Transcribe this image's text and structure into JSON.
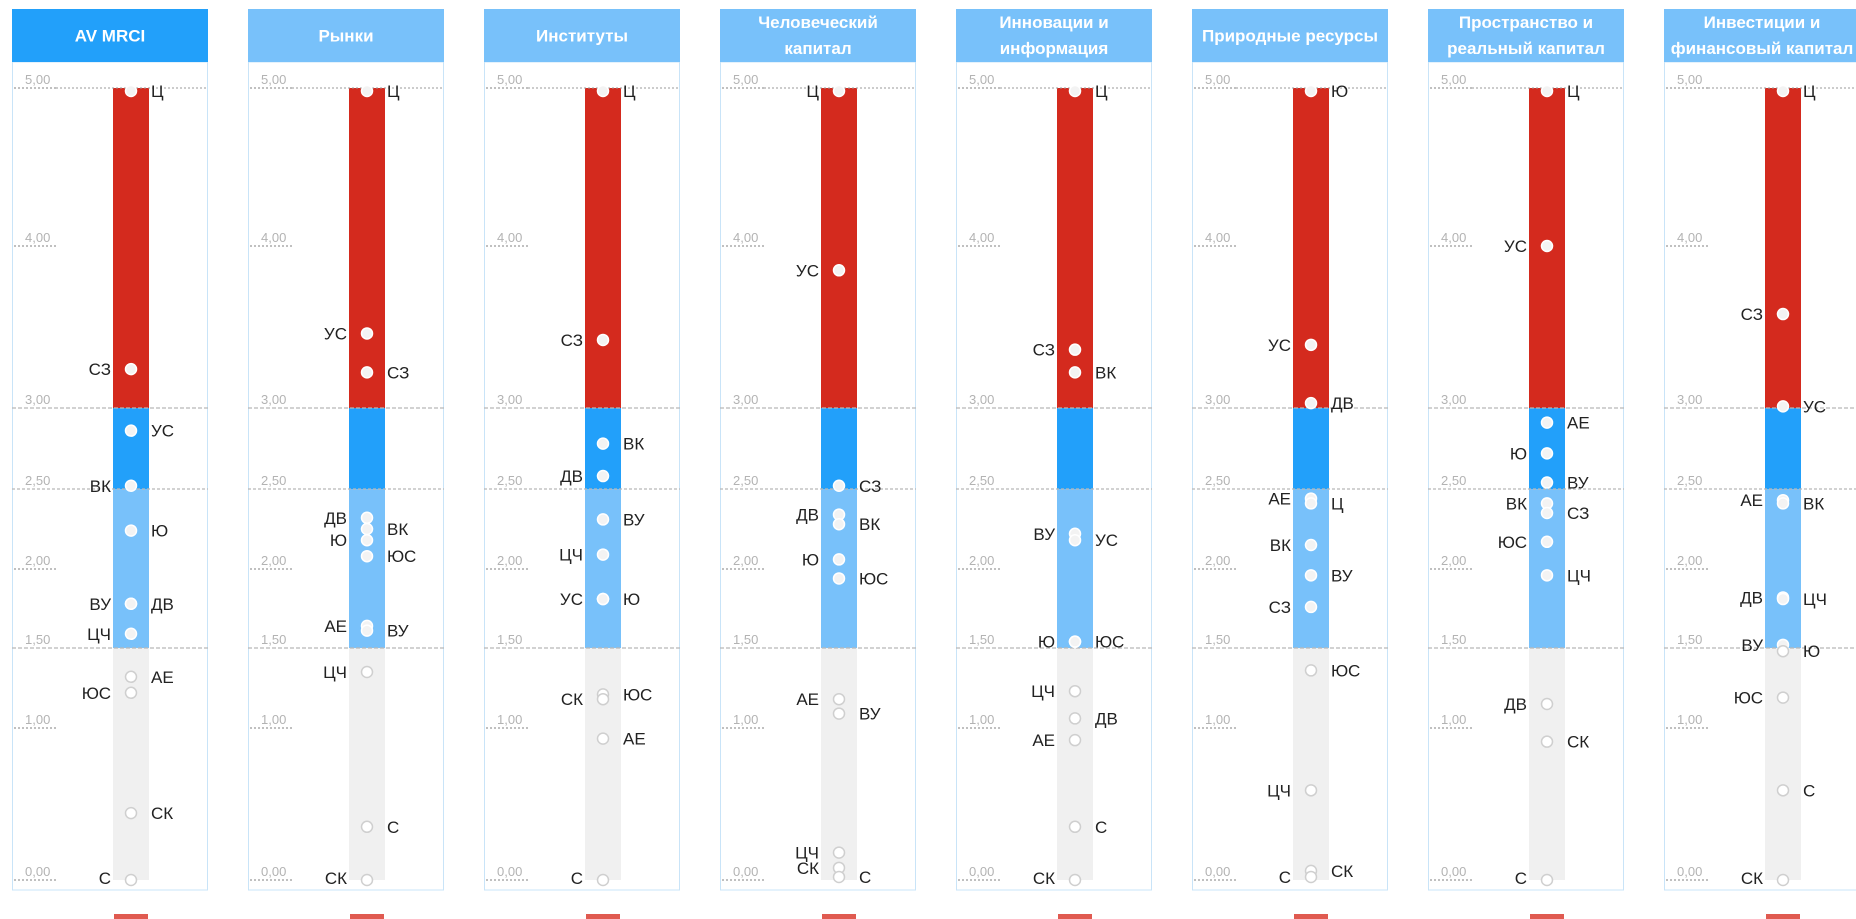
{
  "colors": {
    "header_active": "#22a0fa",
    "header_inactive": "#78c1fa",
    "band_top": "#d42a1e",
    "band_mid": "#22a0fa",
    "band_low": "#78c1fa",
    "band_bottom": "#f0f0f0",
    "panel_border": "#c9e4f8",
    "point_fill": "#f3f3f3",
    "point_stroke_light": "#cfcfcf"
  },
  "chart_data": {
    "type": "scatter",
    "axis": {
      "ticks": [
        {
          "value": 5.0,
          "label": "5,00"
        },
        {
          "value": 4.0,
          "label": "4,00"
        },
        {
          "value": 3.0,
          "label": "3,00"
        },
        {
          "value": 2.5,
          "label": "2,50"
        },
        {
          "value": 2.0,
          "label": "2,00"
        },
        {
          "value": 1.5,
          "label": "1,50"
        },
        {
          "value": 1.0,
          "label": "1,00"
        },
        {
          "value": 0.0,
          "label": "0,00"
        }
      ],
      "bands": [
        {
          "from": 3.0,
          "to": 5.0,
          "color": "#d42a1e"
        },
        {
          "from": 2.5,
          "to": 3.0,
          "color": "#22a0fa"
        },
        {
          "from": 1.5,
          "to": 2.5,
          "color": "#78c1fa"
        },
        {
          "from": 0.0,
          "to": 1.5,
          "color": "#f0f0f0"
        }
      ]
    },
    "panels": [
      {
        "title": [
          "AV MRCI"
        ],
        "active": true,
        "points": [
          {
            "label": "Ц",
            "value": 5.0,
            "side": "right"
          },
          {
            "label": "СЗ",
            "value": 3.24,
            "side": "left"
          },
          {
            "label": "УС",
            "value": 2.86,
            "side": "right"
          },
          {
            "label": "ВК",
            "value": 2.52,
            "side": "left"
          },
          {
            "label": "Ю",
            "value": 2.24,
            "side": "right"
          },
          {
            "label": "ВУ",
            "value": 1.78,
            "side": "left"
          },
          {
            "label": "ДВ",
            "value": 1.78,
            "side": "right"
          },
          {
            "label": "ЦЧ",
            "value": 1.59,
            "side": "left"
          },
          {
            "label": "АЕ",
            "value": 1.32,
            "side": "right"
          },
          {
            "label": "ЮС",
            "value": 1.22,
            "side": "left"
          },
          {
            "label": "СК",
            "value": 0.44,
            "side": "right"
          },
          {
            "label": "С",
            "value": 0.0,
            "side": "left"
          }
        ]
      },
      {
        "title": [
          "Рынки"
        ],
        "active": false,
        "points": [
          {
            "label": "Ц",
            "value": 5.0,
            "side": "right"
          },
          {
            "label": "УС",
            "value": 3.46,
            "side": "left"
          },
          {
            "label": "СЗ",
            "value": 3.22,
            "side": "right"
          },
          {
            "label": "ДВ",
            "value": 2.32,
            "side": "left"
          },
          {
            "label": "ВК",
            "value": 2.25,
            "side": "right"
          },
          {
            "label": "Ю",
            "value": 2.18,
            "side": "left"
          },
          {
            "label": "ЮС",
            "value": 2.08,
            "side": "right"
          },
          {
            "label": "АЕ",
            "value": 1.64,
            "side": "left"
          },
          {
            "label": "ВУ",
            "value": 1.61,
            "side": "right"
          },
          {
            "label": "ЦЧ",
            "value": 1.35,
            "side": "left"
          },
          {
            "label": "С",
            "value": 0.35,
            "side": "right"
          },
          {
            "label": "СК",
            "value": 0.0,
            "side": "left"
          }
        ]
      },
      {
        "title": [
          "Институты"
        ],
        "active": false,
        "points": [
          {
            "label": "Ц",
            "value": 5.0,
            "side": "right"
          },
          {
            "label": "СЗ",
            "value": 3.42,
            "side": "left"
          },
          {
            "label": "ВК",
            "value": 2.78,
            "side": "right"
          },
          {
            "label": "ДВ",
            "value": 2.58,
            "side": "left"
          },
          {
            "label": "ВУ",
            "value": 2.31,
            "side": "right"
          },
          {
            "label": "ЦЧ",
            "value": 2.09,
            "side": "left"
          },
          {
            "label": "Ю",
            "value": 1.81,
            "side": "right"
          },
          {
            "label": "УС",
            "value": 1.81,
            "side": "left"
          },
          {
            "label": "ЮС",
            "value": 1.21,
            "side": "right"
          },
          {
            "label": "СК",
            "value": 1.18,
            "side": "left"
          },
          {
            "label": "АЕ",
            "value": 0.93,
            "side": "right"
          },
          {
            "label": "С",
            "value": 0.0,
            "side": "left"
          }
        ]
      },
      {
        "title": [
          "Человеческий",
          "капитал"
        ],
        "active": false,
        "points": [
          {
            "label": "Ц",
            "value": 5.0,
            "side": "left"
          },
          {
            "label": "УС",
            "value": 3.85,
            "side": "left"
          },
          {
            "label": "СЗ",
            "value": 2.52,
            "side": "right"
          },
          {
            "label": "ДВ",
            "value": 2.34,
            "side": "left"
          },
          {
            "label": "ВК",
            "value": 2.28,
            "side": "right"
          },
          {
            "label": "Ю",
            "value": 2.06,
            "side": "left"
          },
          {
            "label": "ЮС",
            "value": 1.94,
            "side": "right"
          },
          {
            "label": "АЕ",
            "value": 1.18,
            "side": "left"
          },
          {
            "label": "ВУ",
            "value": 1.09,
            "side": "right"
          },
          {
            "label": "ЦЧ",
            "value": 0.18,
            "side": "left"
          },
          {
            "label": "СК",
            "value": 0.08,
            "side": "left"
          },
          {
            "label": "С",
            "value": 0.02,
            "side": "right"
          }
        ]
      },
      {
        "title": [
          "Инновации и",
          "информация"
        ],
        "active": false,
        "points": [
          {
            "label": "Ц",
            "value": 5.0,
            "side": "right"
          },
          {
            "label": "СЗ",
            "value": 3.36,
            "side": "left"
          },
          {
            "label": "ВК",
            "value": 3.22,
            "side": "right"
          },
          {
            "label": "ВУ",
            "value": 2.22,
            "side": "left"
          },
          {
            "label": "УС",
            "value": 2.18,
            "side": "right"
          },
          {
            "label": "Ю",
            "value": 1.54,
            "side": "left"
          },
          {
            "label": "ЮС",
            "value": 1.54,
            "side": "right"
          },
          {
            "label": "ЦЧ",
            "value": 1.23,
            "side": "left"
          },
          {
            "label": "ДВ",
            "value": 1.06,
            "side": "right"
          },
          {
            "label": "АЕ",
            "value": 0.92,
            "side": "left"
          },
          {
            "label": "С",
            "value": 0.35,
            "side": "right"
          },
          {
            "label": "СК",
            "value": 0.0,
            "side": "left"
          }
        ]
      },
      {
        "title": [
          "Природные ресурсы"
        ],
        "active": false,
        "points": [
          {
            "label": "Ю",
            "value": 5.0,
            "side": "right"
          },
          {
            "label": "УС",
            "value": 3.39,
            "side": "left"
          },
          {
            "label": "ДВ",
            "value": 3.03,
            "side": "right"
          },
          {
            "label": "АЕ",
            "value": 2.44,
            "side": "left"
          },
          {
            "label": "Ц",
            "value": 2.41,
            "side": "right"
          },
          {
            "label": "ВК",
            "value": 2.15,
            "side": "left"
          },
          {
            "label": "ВУ",
            "value": 1.96,
            "side": "right"
          },
          {
            "label": "СЗ",
            "value": 1.76,
            "side": "left"
          },
          {
            "label": "ЮС",
            "value": 1.36,
            "side": "right"
          },
          {
            "label": "ЦЧ",
            "value": 0.59,
            "side": "left"
          },
          {
            "label": "СК",
            "value": 0.06,
            "side": "right"
          },
          {
            "label": "С",
            "value": 0.02,
            "side": "left"
          }
        ]
      },
      {
        "title": [
          "Пространство и",
          "реальный капитал"
        ],
        "active": false,
        "points": [
          {
            "label": "Ц",
            "value": 5.0,
            "side": "right"
          },
          {
            "label": "УС",
            "value": 4.0,
            "side": "left"
          },
          {
            "label": "АЕ",
            "value": 2.91,
            "side": "right"
          },
          {
            "label": "Ю",
            "value": 2.72,
            "side": "left"
          },
          {
            "label": "ВУ",
            "value": 2.54,
            "side": "right"
          },
          {
            "label": "ВК",
            "value": 2.41,
            "side": "left"
          },
          {
            "label": "СЗ",
            "value": 2.35,
            "side": "right"
          },
          {
            "label": "ЮС",
            "value": 2.17,
            "side": "left"
          },
          {
            "label": "ЦЧ",
            "value": 1.96,
            "side": "right"
          },
          {
            "label": "ДВ",
            "value": 1.15,
            "side": "left"
          },
          {
            "label": "СК",
            "value": 0.91,
            "side": "right"
          },
          {
            "label": "С",
            "value": 0.0,
            "side": "left"
          }
        ]
      },
      {
        "title": [
          "Инвестиции и",
          "финансовый капитал"
        ],
        "active": false,
        "points": [
          {
            "label": "Ц",
            "value": 5.0,
            "side": "right"
          },
          {
            "label": "СЗ",
            "value": 3.58,
            "side": "left"
          },
          {
            "label": "УС",
            "value": 3.01,
            "side": "right"
          },
          {
            "label": "АЕ",
            "value": 2.43,
            "side": "left"
          },
          {
            "label": "ВК",
            "value": 2.41,
            "side": "right"
          },
          {
            "label": "ДВ",
            "value": 1.82,
            "side": "left"
          },
          {
            "label": "ЦЧ",
            "value": 1.81,
            "side": "right"
          },
          {
            "label": "ВУ",
            "value": 1.52,
            "side": "left"
          },
          {
            "label": "Ю",
            "value": 1.48,
            "side": "right"
          },
          {
            "label": "ЮС",
            "value": 1.19,
            "side": "left"
          },
          {
            "label": "С",
            "value": 0.59,
            "side": "right"
          },
          {
            "label": "СК",
            "value": 0.0,
            "side": "left"
          }
        ]
      }
    ]
  }
}
